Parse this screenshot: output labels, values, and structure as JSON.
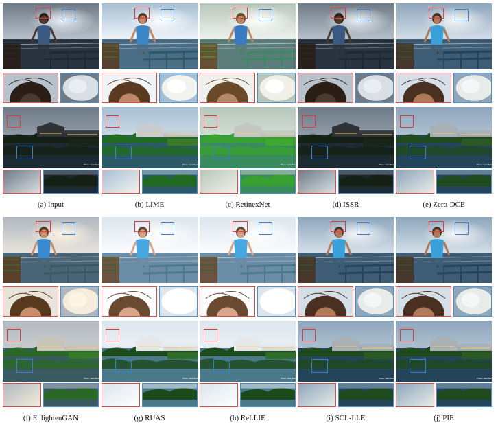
{
  "figure": {
    "panels": [
      {
        "caption": "(a)  Input",
        "tone": "dark"
      },
      {
        "caption": "(b)  LIME",
        "tone": "vivid"
      },
      {
        "caption": "(c)  RetinexNet",
        "tone": "green"
      },
      {
        "caption": "(d)  ISSR",
        "tone": "dark"
      },
      {
        "caption": "(e)  Zero-DCE",
        "tone": "medium"
      },
      {
        "caption": "(f)  EnlightenGAN",
        "tone": "warm"
      },
      {
        "caption": "(g)  RUAS",
        "tone": "bright"
      },
      {
        "caption": "(h)  ReLLIE",
        "tone": "bright"
      },
      {
        "caption": "(i)  SCL-LLE",
        "tone": "medium"
      },
      {
        "caption": "(j)  PIE",
        "tone": "medium"
      }
    ],
    "watermark_text": "Photo: Jack Beckwell",
    "colors": {
      "zoom_box_red": "#e03a3a",
      "zoom_box_blue": "#3a7fc8"
    }
  }
}
